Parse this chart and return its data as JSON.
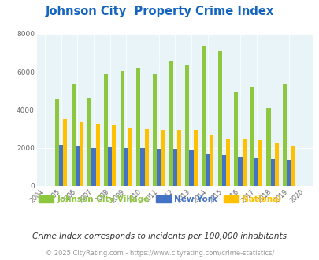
{
  "title": "Johnson City  Property Crime Index",
  "years": [
    2004,
    2005,
    2006,
    2007,
    2008,
    2009,
    2010,
    2011,
    2012,
    2013,
    2014,
    2015,
    2016,
    2017,
    2018,
    2019,
    2020
  ],
  "johnson_city": [
    0,
    4550,
    5350,
    4650,
    5900,
    6050,
    6200,
    5900,
    6600,
    6400,
    7350,
    7100,
    4950,
    5200,
    4100,
    5400,
    0
  ],
  "new_york": [
    0,
    2150,
    2100,
    2000,
    2050,
    2000,
    2000,
    1950,
    1950,
    1850,
    1700,
    1600,
    1550,
    1500,
    1400,
    1350,
    0
  ],
  "national": [
    0,
    3500,
    3350,
    3250,
    3200,
    3050,
    2980,
    2920,
    2940,
    2950,
    2700,
    2500,
    2500,
    2400,
    2230,
    2130,
    0
  ],
  "ylim": [
    0,
    8000
  ],
  "yticks": [
    0,
    2000,
    4000,
    6000,
    8000
  ],
  "color_jc": "#8dc63f",
  "color_ny": "#4472c4",
  "color_nat": "#ffc000",
  "bg_color": "#e8f4f8",
  "title_color": "#1565c0",
  "subtitle": "Crime Index corresponds to incidents per 100,000 inhabitants",
  "footer": "© 2025 CityRating.com - https://www.cityrating.com/crime-statistics/",
  "legend_labels": [
    "Johnson City Village",
    "New York",
    "National"
  ],
  "bar_width": 0.25
}
